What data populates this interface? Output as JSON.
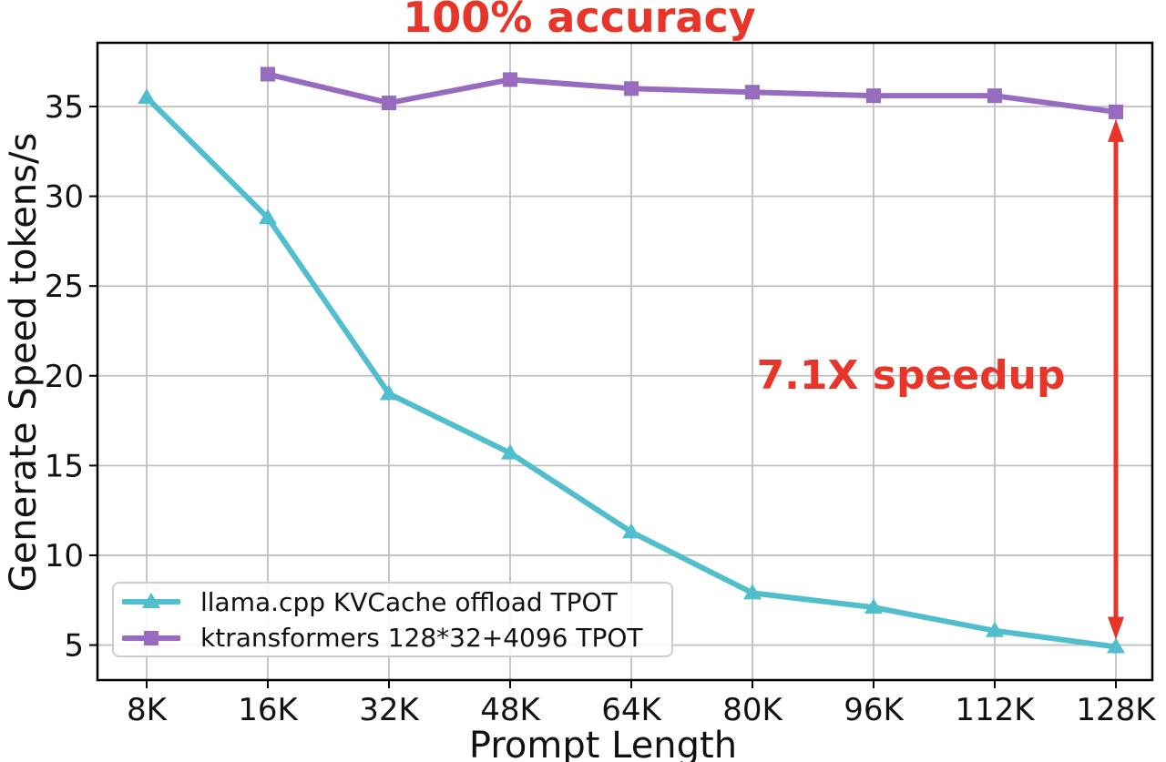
{
  "chart_data": {
    "type": "line",
    "title": "100% accuracy",
    "title_color": "#e8352a",
    "xlabel": "Prompt Length",
    "ylabel": "Generate Speed tokens/s",
    "categories": [
      "8K",
      "16K",
      "32K",
      "48K",
      "64K",
      "80K",
      "96K",
      "112K",
      "128K"
    ],
    "yticks": [
      5,
      10,
      15,
      20,
      25,
      30,
      35
    ],
    "ylim": [
      3.05,
      38.55
    ],
    "grid": true,
    "grid_color": "#c0c0c0",
    "legend_position": "lower left",
    "series": [
      {
        "name": "llama.cpp KVCache offload TPOT",
        "color": "#50becd",
        "marker": "triangle",
        "values": [
          35.5,
          28.8,
          19.0,
          15.7,
          11.3,
          7.9,
          7.1,
          5.8,
          4.9
        ]
      },
      {
        "name": "ktransformers 128*32+4096 TPOT",
        "color": "#976cc0",
        "marker": "square",
        "values": [
          null,
          36.8,
          35.2,
          36.5,
          36.0,
          35.8,
          35.6,
          35.6,
          34.7
        ]
      }
    ],
    "annotation": {
      "text": "7.1X speedup",
      "color": "#e8352a"
    },
    "arrow": {
      "category": "128K",
      "category_index": 8,
      "top_value": 34.7,
      "bottom_value": 4.9,
      "color": "#e8352a"
    }
  }
}
